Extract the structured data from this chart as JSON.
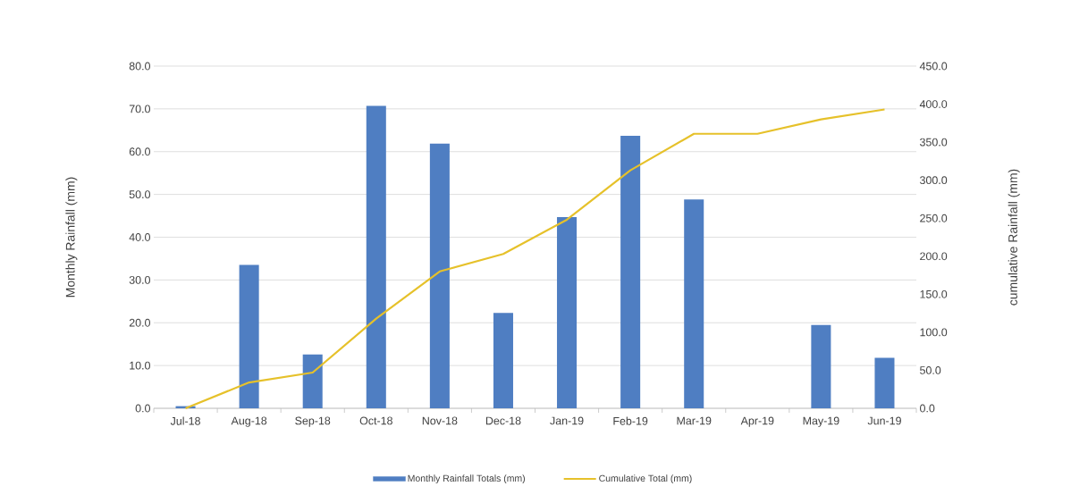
{
  "chart_data": {
    "type": "bar",
    "categories": [
      "Jul-18",
      "Aug-18",
      "Sep-18",
      "Oct-18",
      "Nov-18",
      "Dec-18",
      "Jan-19",
      "Feb-19",
      "Mar-19",
      "Apr-19",
      "May-19",
      "Jun-19"
    ],
    "series": [
      {
        "name": "Monthly Rainfall Totals (mm)",
        "color": "#4f7ec2",
        "values": [
          0.5,
          33.5,
          12.6,
          70.7,
          61.9,
          22.3,
          44.7,
          63.7,
          48.8,
          0,
          19.5,
          11.8
        ]
      },
      {
        "name": "Cumulative Total (mm)",
        "type": "line",
        "axis": "y2",
        "color": "#e6c12a",
        "values": [
          0,
          34,
          47,
          118,
          180,
          203,
          248,
          313,
          361,
          361,
          380,
          393
        ]
      }
    ],
    "ylabel": "Monthly Rainfall (mm)",
    "y2label": "cumulative Rainfall (mm)",
    "ylim": [
      0,
      80
    ],
    "yticks": [
      {
        "value": 0,
        "label": "0.0"
      },
      {
        "value": 10,
        "label": "10.0"
      },
      {
        "value": 20,
        "label": "20.0"
      },
      {
        "value": 30,
        "label": "30.0"
      },
      {
        "value": 40,
        "label": "40.0"
      },
      {
        "value": 50,
        "label": "50.0"
      },
      {
        "value": 60,
        "label": "60.0"
      },
      {
        "value": 70,
        "label": "70.0"
      },
      {
        "value": 80,
        "label": "80.0"
      }
    ],
    "y2lim": [
      0,
      450
    ],
    "y2ticks": [
      {
        "value": 0,
        "label": "0.0"
      },
      {
        "value": 50,
        "label": "50.0"
      },
      {
        "value": 100,
        "label": "100.0"
      },
      {
        "value": 150,
        "label": "150.0"
      },
      {
        "value": 200,
        "label": "200.0"
      },
      {
        "value": 250,
        "label": "250.0"
      },
      {
        "value": 300,
        "label": "300.0"
      },
      {
        "value": 350,
        "label": "350.0"
      },
      {
        "value": 400,
        "label": "400.0"
      },
      {
        "value": 450,
        "label": "450.0"
      }
    ],
    "grid": "y",
    "legend": "bottom"
  }
}
